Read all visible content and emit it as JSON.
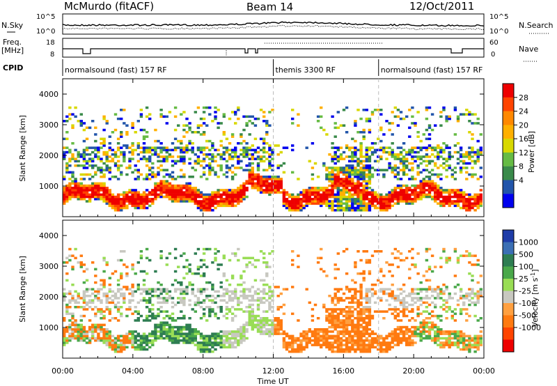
{
  "header": {
    "site": "McMurdo (fitACF)",
    "beam": "Beam 14",
    "date": "12/Oct/2011"
  },
  "noise_panel": {
    "left_label": "N.Sky",
    "right_label": "N.Search",
    "left_ticks": [
      "10^5",
      "10^0"
    ],
    "right_ticks": [
      "10^5",
      "10^0"
    ]
  },
  "freq_panel": {
    "left_label_1": "Freq.",
    "left_label_2": "[MHz]",
    "right_label": "Nave",
    "left_ticks": [
      "18",
      "8"
    ],
    "right_ticks": [
      "60",
      "0"
    ],
    "cpid_label": "CPID"
  },
  "cpid_segments": [
    {
      "label": "normalsound (fast) 157 RF",
      "start_hour": 0,
      "end_hour": 12
    },
    {
      "label": "themis 3300 RF",
      "start_hour": 12,
      "end_hour": 18
    },
    {
      "label": "normalsound (fast) 157 RF",
      "start_hour": 18,
      "end_hour": 24
    }
  ],
  "time_axis": {
    "title": "Time UT",
    "ticks": [
      "00:00",
      "04:00",
      "08:00",
      "12:00",
      "16:00",
      "20:00",
      "00:00"
    ],
    "hours": [
      0,
      4,
      8,
      12,
      16,
      20,
      24
    ]
  },
  "power_scale": {
    "title": "Power [dB]",
    "ticks": [
      "28",
      "24",
      "20",
      "16",
      "12",
      "8",
      "4"
    ],
    "colors": [
      "#ee0000",
      "#ff4400",
      "#ff8800",
      "#ffb000",
      "#d8d800",
      "#66bb44",
      "#3a8a4a",
      "#2255aa",
      "#0000ee"
    ]
  },
  "velocity_scale": {
    "title": "Velocity [m s",
    "title_sup": "-1",
    "title_end": "]",
    "ticks": [
      "1000",
      "500",
      "100",
      "25",
      "-25",
      "-100",
      "-500",
      "-1000"
    ],
    "colors": [
      "#1e3ca8",
      "#3b6fb4",
      "#2e7d52",
      "#4aa84a",
      "#99dd55",
      "#c8c8c0",
      "#ffa040",
      "#ff7a10",
      "#ff4400",
      "#ee0000"
    ]
  },
  "chart_data": [
    {
      "type": "heatmap",
      "title": "Power",
      "xlabel": "Time UT",
      "ylabel": "Slant Range [km]",
      "xlim_hours": [
        0,
        24
      ],
      "ylim": [
        0,
        4500
      ],
      "y_ticks": [
        1000,
        2000,
        3000,
        4000
      ],
      "colorbar": {
        "label": "Power [dB]",
        "range": [
          0,
          30
        ],
        "ticks": [
          4,
          8,
          12,
          16,
          20,
          24,
          28
        ]
      }
    },
    {
      "type": "heatmap",
      "title": "Velocity",
      "xlabel": "Time UT",
      "ylabel": "Slant Range [km]",
      "xlim_hours": [
        0,
        24
      ],
      "ylim": [
        0,
        4500
      ],
      "y_ticks": [
        1000,
        2000,
        3000,
        4000
      ],
      "colorbar": {
        "label": "Velocity [m s-1]",
        "ticks": [
          -1000,
          -500,
          -100,
          -25,
          25,
          100,
          500,
          1000
        ]
      }
    }
  ]
}
